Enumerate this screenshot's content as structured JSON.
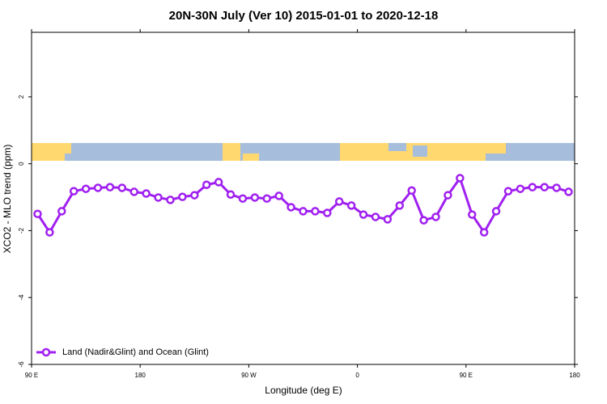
{
  "chart_data": {
    "type": "line",
    "title": "20N-30N July (Ver 10)   2015-01-01 to 2020-12-18",
    "xlabel": "Longitude (deg E)",
    "ylabel": "XCO2 - MLO trend (ppm)",
    "x": [
      95,
      105,
      115,
      125,
      135,
      145,
      155,
      165,
      175,
      185,
      195,
      205,
      215,
      225,
      235,
      245,
      255,
      265,
      275,
      285,
      295,
      305,
      315,
      325,
      335,
      345,
      355,
      365,
      375,
      385,
      395,
      405,
      415,
      425,
      435,
      445,
      455,
      465,
      475,
      485,
      495,
      505,
      515,
      525,
      535
    ],
    "series": [
      {
        "name": "Land (Nadir&Glint) and Ocean (Glint)",
        "color": "#a020f0",
        "values": [
          -1.5,
          -2.05,
          -1.42,
          -0.82,
          -0.75,
          -0.72,
          -0.7,
          -0.72,
          -0.84,
          -0.89,
          -1.01,
          -1.08,
          -0.99,
          -0.94,
          -0.63,
          -0.55,
          -0.92,
          -1.04,
          -1.01,
          -1.04,
          -0.96,
          -1.3,
          -1.42,
          -1.42,
          -1.47,
          -1.13,
          -1.25,
          -1.52,
          -1.59,
          -1.66,
          -1.25,
          -0.8,
          -1.69,
          -1.59,
          -0.94,
          -0.43,
          -1.52,
          -2.05,
          -1.42,
          -0.82,
          -0.75,
          -0.7,
          -0.7,
          -0.72,
          -0.84
        ]
      }
    ],
    "xlim": [
      90,
      540
    ],
    "xticks": [
      {
        "value": 90,
        "label": "90 E"
      },
      180,
      {
        "value": 270,
        "label": "90 W"
      },
      {
        "value": 360,
        "label": "0"
      },
      {
        "value": 450,
        "label": "90 E"
      },
      {
        "value": 540,
        "label": "180"
      }
    ],
    "ylim": [
      -6,
      3.93
    ],
    "yticks": [
      -6,
      -4,
      -2,
      0,
      2
    ],
    "legend": "bottom-left"
  }
}
